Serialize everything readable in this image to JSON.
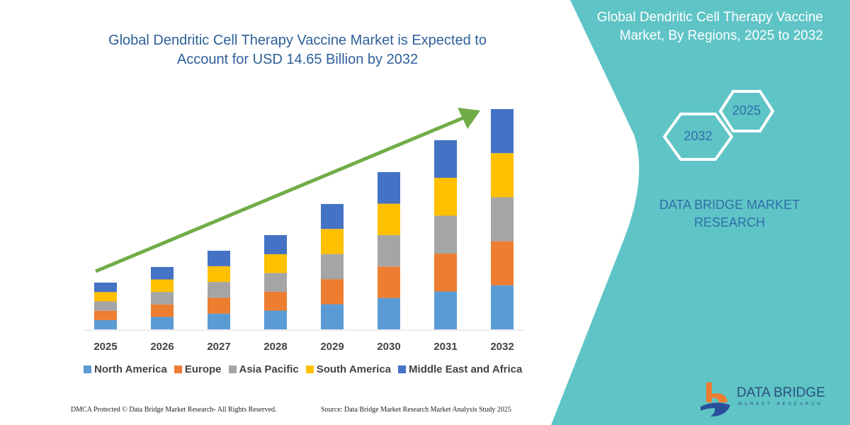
{
  "title": "Global Dendritic Cell Therapy Vaccine Market is Expected to Account for USD 14.65 Billion by 2032",
  "side_panel": {
    "title": "Global Dendritic Cell Therapy Vaccine Market, By Regions, 2025 to 2032",
    "hex_years": [
      "2032",
      "2025"
    ],
    "brand": "DATA BRIDGE MARKET RESEARCH",
    "logo_text": "DATA BRIDGE",
    "logo_sub": "MARKET RESEARCH",
    "color": "#5fc4c6"
  },
  "footer": {
    "left": "DMCA Protected © Data Bridge Market Research-  All Rights Reserved.",
    "right": "Source: Data Bridge Market Research  Market Analysis Study 2025"
  },
  "chart_data": {
    "type": "bar",
    "stacked": true,
    "title": "Global Dendritic Cell Therapy Vaccine Market is Expected to Account for USD 14.65 Billion by 2032",
    "categories": [
      "2025",
      "2026",
      "2027",
      "2028",
      "2029",
      "2030",
      "2031",
      "2032"
    ],
    "series": [
      {
        "name": "North America",
        "color": "#5b9bd5",
        "values": [
          0.62,
          0.83,
          1.05,
          1.25,
          1.67,
          2.09,
          2.52,
          2.93
        ]
      },
      {
        "name": "Europe",
        "color": "#ed7d31",
        "values": [
          0.62,
          0.83,
          1.05,
          1.25,
          1.67,
          2.09,
          2.52,
          2.93
        ]
      },
      {
        "name": "Asia Pacific",
        "color": "#a5a5a5",
        "values": [
          0.62,
          0.83,
          1.05,
          1.25,
          1.67,
          2.09,
          2.52,
          2.93
        ]
      },
      {
        "name": "South America",
        "color": "#ffc000",
        "values": [
          0.62,
          0.83,
          1.05,
          1.25,
          1.67,
          2.09,
          2.52,
          2.93
        ]
      },
      {
        "name": "Middle East and Africa",
        "color": "#4472c4",
        "values": [
          0.63,
          0.83,
          1.03,
          1.27,
          1.66,
          2.1,
          2.5,
          2.93
        ]
      }
    ],
    "ylim": [
      0,
      14.65
    ],
    "grid": false,
    "legend": "bottom",
    "trend_arrow_color": "#70ad47"
  }
}
